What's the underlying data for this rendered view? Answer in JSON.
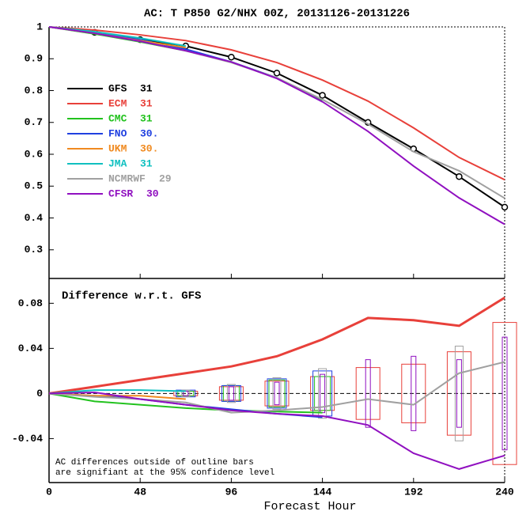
{
  "chart_data": [
    {
      "type": "line",
      "title": "AC: T P850 G2/NHX 00Z, 20131126-20131226",
      "x": [
        0,
        24,
        48,
        72,
        96,
        120,
        144,
        168,
        192,
        216,
        240
      ],
      "xlim": [
        0,
        240
      ],
      "xticks": [
        0,
        48,
        96,
        144,
        192,
        240
      ],
      "ylim": [
        0.21,
        1
      ],
      "yticks": [
        1,
        0.9,
        0.8,
        0.7,
        0.6,
        0.5,
        0.4,
        0.3
      ],
      "series": [
        {
          "name": "GFS",
          "count": "31",
          "color": "#000000",
          "marker": "circle",
          "values": [
            1,
            0.983,
            0.96,
            0.94,
            0.905,
            0.855,
            0.785,
            0.7,
            0.617,
            0.53,
            0.434
          ]
        },
        {
          "name": "ECM",
          "count": "31",
          "color": "#e8403a",
          "values": [
            1,
            0.99,
            0.975,
            0.957,
            0.928,
            0.888,
            0.833,
            0.767,
            0.683,
            0.59,
            0.52
          ]
        },
        {
          "name": "CMC",
          "count": "31",
          "color": "#22c21e",
          "values": [
            1,
            0.978,
            0.953,
            0.925,
            0.89,
            0.84,
            0.77,
            null,
            null,
            null,
            null
          ]
        },
        {
          "name": "FNO",
          "count": "30.",
          "color": "#2040e0",
          "values": [
            1,
            0.982,
            0.96,
            0.93,
            0.89,
            0.84,
            0.765,
            null,
            null,
            null,
            null
          ]
        },
        {
          "name": "UKM",
          "count": "30.",
          "color": "#f08a20",
          "values": [
            1,
            0.98,
            0.957,
            0.935,
            null,
            null,
            null,
            null,
            null,
            null,
            null
          ]
        },
        {
          "name": "JMA",
          "count": "31",
          "color": "#10c0c0",
          "values": [
            1,
            0.985,
            0.965,
            0.94,
            null,
            null,
            null,
            null,
            null,
            null,
            null
          ]
        },
        {
          "name": "NCMRWF",
          "count": "29",
          "color": "#a0a0a0",
          "values": [
            1,
            0.98,
            0.955,
            0.925,
            0.888,
            0.84,
            0.772,
            0.695,
            0.608,
            0.548,
            0.462
          ]
        },
        {
          "name": "CFSR",
          "count": "30",
          "color": "#9010c0",
          "values": [
            1,
            0.98,
            0.955,
            0.925,
            0.89,
            0.838,
            0.765,
            0.672,
            0.563,
            0.463,
            0.38
          ]
        }
      ]
    },
    {
      "type": "line",
      "subtitle": "Difference w.r.t. GFS",
      "x_label": "Forecast Hour",
      "annotation": [
        "AC differences outside of outline bars",
        "are signifiant at the 95% confidence level"
      ],
      "x": [
        0,
        24,
        48,
        72,
        96,
        120,
        144,
        168,
        192,
        216,
        240
      ],
      "xlim": [
        0,
        240
      ],
      "xticks": [
        0,
        48,
        96,
        144,
        192,
        240
      ],
      "ylim": [
        -0.079,
        0.102
      ],
      "yticks": [
        0.08,
        0.04,
        0,
        -0.04
      ],
      "series": [
        {
          "name": "ECM",
          "color": "#e8403a",
          "values": [
            0,
            0.006,
            0.012,
            0.018,
            0.024,
            0.033,
            0.048,
            0.067,
            0.065,
            0.06,
            0.085
          ],
          "ci": [
            null,
            null,
            null,
            0.002,
            0.006,
            0.011,
            0.015,
            0.023,
            0.026,
            0.037,
            0.063
          ]
        },
        {
          "name": "CMC",
          "color": "#22c21e",
          "values": [
            0,
            -0.007,
            -0.01,
            -0.013,
            -0.015,
            -0.016,
            -0.017,
            null,
            null,
            null,
            null
          ],
          "ci": [
            null,
            null,
            null,
            0.002,
            0.007,
            0.012,
            0.015,
            null,
            null,
            null,
            null
          ]
        },
        {
          "name": "FNO",
          "color": "#2040e0",
          "values": [
            0,
            -0.002,
            -0.005,
            -0.01,
            -0.014,
            -0.018,
            -0.021,
            null,
            null,
            null,
            null
          ],
          "ci": [
            null,
            null,
            null,
            0.003,
            0.007,
            0.013,
            0.02,
            null,
            null,
            null,
            null
          ]
        },
        {
          "name": "UKM",
          "color": "#f08a20",
          "values": [
            0,
            -0.002,
            -0.002,
            -0.005,
            null,
            null,
            null,
            null,
            null,
            null,
            null
          ]
        },
        {
          "name": "JMA",
          "color": "#10c0c0",
          "values": [
            0,
            0.003,
            0.003,
            0.002,
            null,
            null,
            null,
            null,
            null,
            null,
            null
          ]
        },
        {
          "name": "NCMRWF",
          "color": "#a0a0a0",
          "values": [
            0,
            -0.003,
            -0.005,
            -0.008,
            -0.017,
            -0.015,
            -0.012,
            -0.005,
            -0.01,
            0.018,
            0.028
          ],
          "ci": [
            null,
            null,
            null,
            0.003,
            0.008,
            0.014,
            0.022,
            null,
            null,
            0.042,
            null
          ]
        },
        {
          "name": "CFSR",
          "color": "#9010c0",
          "values": [
            0,
            0.001,
            -0.005,
            -0.01,
            -0.015,
            -0.018,
            -0.02,
            -0.028,
            -0.053,
            -0.067,
            -0.055
          ],
          "ci": [
            null,
            null,
            null,
            0.002,
            0.006,
            0.01,
            0.017,
            0.03,
            0.033,
            0.03,
            0.05
          ]
        }
      ]
    }
  ]
}
